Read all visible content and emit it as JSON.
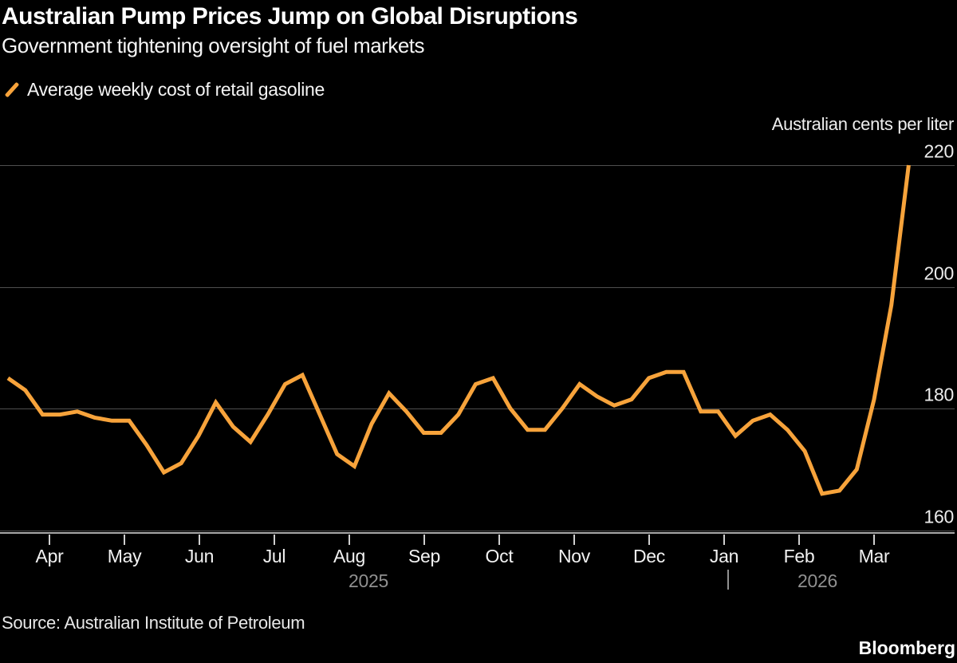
{
  "header": {
    "title": "Australian Pump Prices Jump on Global Disruptions",
    "subtitle": "Government tightening oversight of fuel markets"
  },
  "legend": {
    "label": "Average weekly cost of retail gasoline",
    "marker_color": "#F7A33B"
  },
  "axis_unit_label": "Australian cents per liter",
  "source": "Source: Australian Institute of Petroleum",
  "brand": "Bloomberg",
  "colors": {
    "background": "#000000",
    "line": "#F7A33B",
    "gridline": "#4f4f4f",
    "axis_line": "#a8a8a8",
    "tick_mark": "#cfcfcf",
    "y_tick_label": "#ececec",
    "month_label": "#f2f2f2",
    "year_label": "#909090"
  },
  "chart_data": {
    "type": "line",
    "title": "Australian Pump Prices Jump on Global Disruptions",
    "subtitle": "Government tightening oversight of fuel markets",
    "ylabel": "Australian cents per liter",
    "xlabel": "",
    "grid": "horizontal",
    "legend_position": "top-left",
    "x_unit": "weekly observations, late Mar 2025 to mid Mar 2026",
    "x_tick_labels": [
      "Apr",
      "May",
      "Jun",
      "Jul",
      "Aug",
      "Sep",
      "Oct",
      "Nov",
      "Dec",
      "Jan",
      "Feb",
      "Mar"
    ],
    "x_year_labels": [
      "2025",
      "2026"
    ],
    "year_divider": "|",
    "y_axis": {
      "ticks": [
        220,
        200,
        180,
        160
      ],
      "range": [
        158,
        222
      ]
    },
    "series": [
      {
        "name": "Average weekly cost of retail gasoline",
        "color": "#F7A33B",
        "values": [
          185,
          183,
          179,
          179,
          179.5,
          178.5,
          178,
          178,
          174,
          169.5,
          171,
          175.5,
          181,
          177,
          174.5,
          179,
          184,
          185.5,
          179,
          172.5,
          170.5,
          177.5,
          182.5,
          179.5,
          176,
          176,
          179,
          184,
          185,
          180,
          176.5,
          176.5,
          180,
          184,
          182,
          180.5,
          181.5,
          185,
          186,
          186,
          179.5,
          179.5,
          175.5,
          178,
          179,
          176.5,
          173,
          166,
          166.5,
          170,
          181.5,
          197,
          220
        ]
      }
    ]
  }
}
